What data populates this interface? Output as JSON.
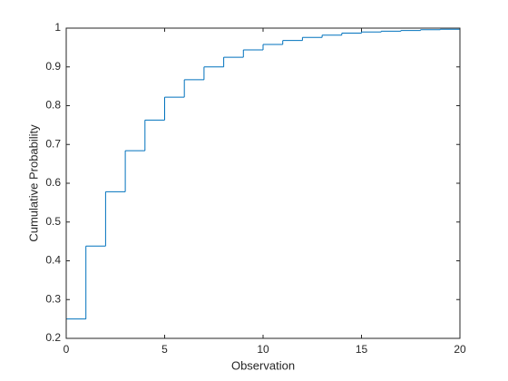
{
  "chart_data": {
    "type": "stairs",
    "xlabel": "Observation",
    "ylabel": "Cumulative Probability",
    "x": [
      0,
      1,
      2,
      3,
      4,
      5,
      6,
      7,
      8,
      9,
      10,
      11,
      12,
      13,
      14,
      15,
      16,
      17,
      18,
      19,
      20
    ],
    "series": [
      {
        "color": "#0072bd",
        "values": [
          0.25,
          0.438,
          0.578,
          0.684,
          0.763,
          0.822,
          0.867,
          0.9,
          0.925,
          0.944,
          0.958,
          0.968,
          0.976,
          0.982,
          0.987,
          0.99,
          0.992,
          0.994,
          0.996,
          0.997,
          0.998
        ]
      }
    ],
    "xlim": [
      0,
      20
    ],
    "xticks": [
      0,
      5,
      10,
      15,
      20
    ],
    "ylim": [
      0.2,
      1
    ],
    "yticks": [
      0.2,
      0.3,
      0.4,
      0.5,
      0.6,
      0.7,
      0.8,
      0.9,
      1
    ],
    "grid": false,
    "box": true
  }
}
